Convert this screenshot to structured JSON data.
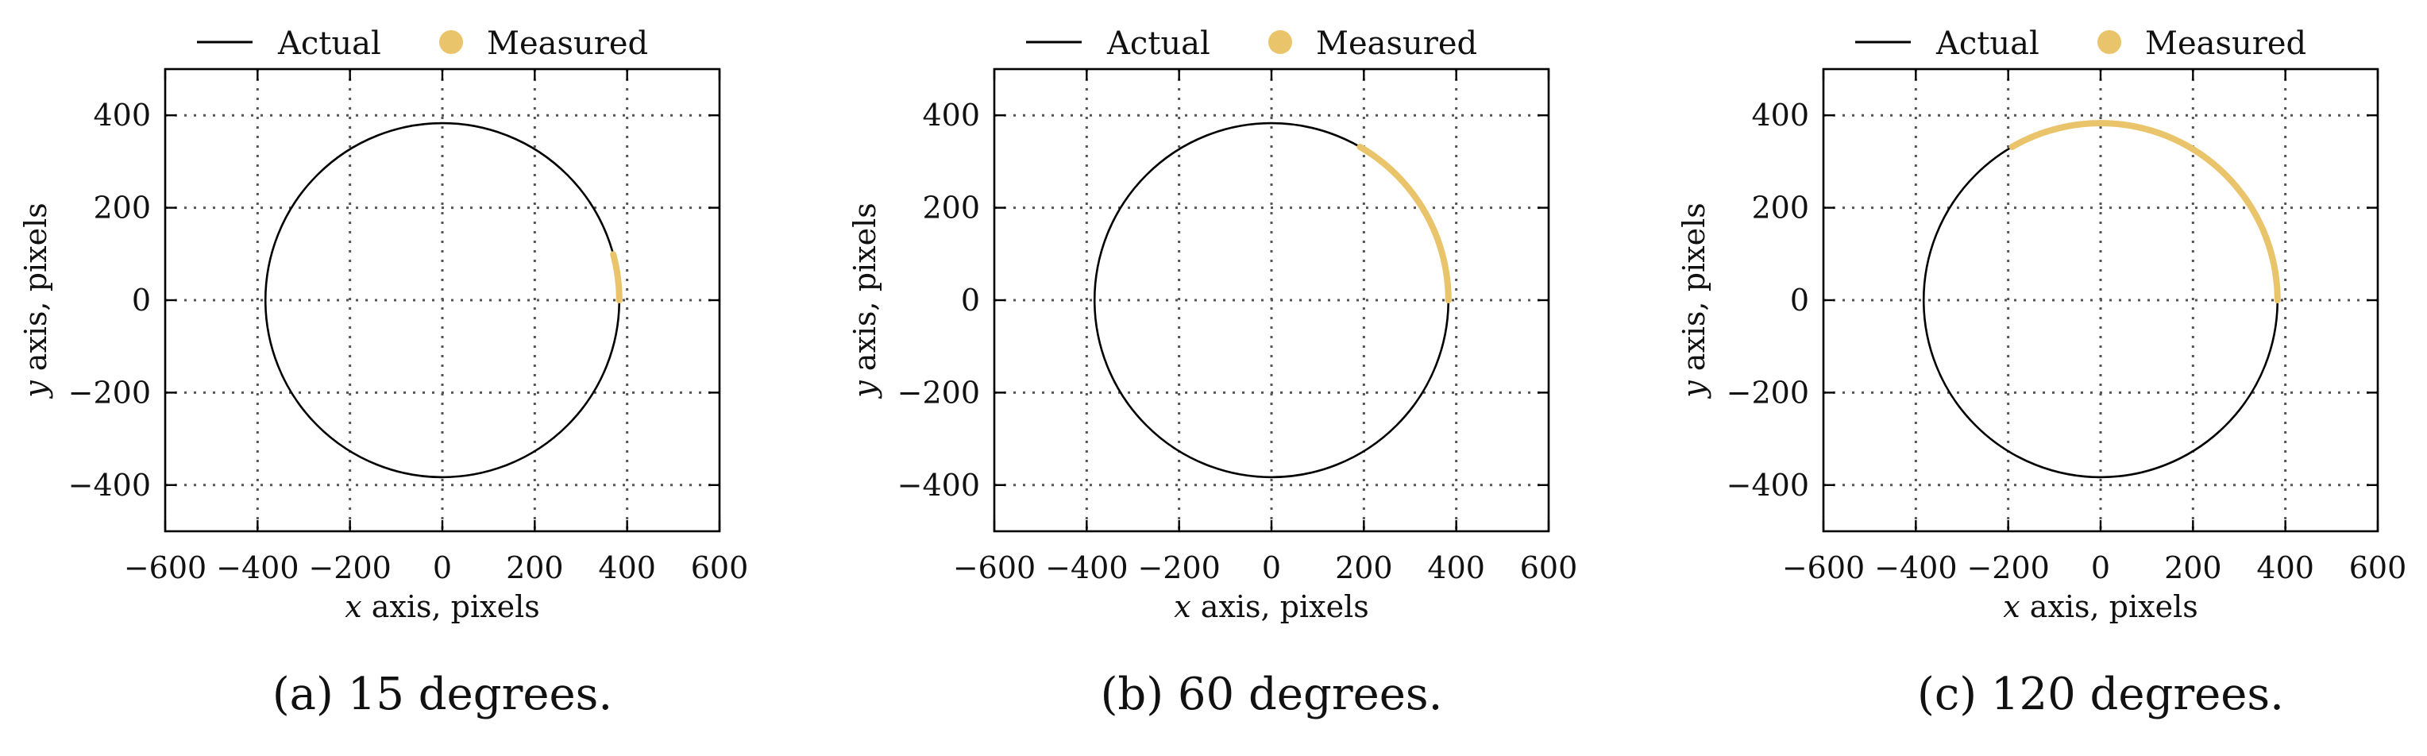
{
  "chart_data": [
    {
      "type": "line",
      "caption": "(a) 15 degrees.",
      "xlabel_var": "x",
      "xlabel_rest": " axis, pixels",
      "ylabel_var": "y",
      "ylabel_rest": " axis, pixels",
      "xlim": [
        -600,
        600
      ],
      "ylim": [
        -500,
        500
      ],
      "xticks": [
        -600,
        -400,
        -200,
        0,
        200,
        400,
        600
      ],
      "yticks": [
        -400,
        -200,
        0,
        200,
        400
      ],
      "xtick_labels": [
        "−600",
        "−400",
        "−200",
        "0",
        "200",
        "400",
        "600"
      ],
      "ytick_labels": [
        "−400",
        "−200",
        "0",
        "200",
        "400"
      ],
      "grid": true,
      "legend": [
        "Actual",
        "Measured"
      ],
      "legend_position": "top",
      "series": [
        {
          "name": "Actual",
          "kind": "circle",
          "center": [
            0,
            0
          ],
          "radius": 383,
          "color": "#000000"
        },
        {
          "name": "Measured",
          "kind": "arc",
          "center": [
            0,
            0
          ],
          "radius": 383,
          "start_deg": 0,
          "end_deg": 15,
          "color": "#E9C46A"
        }
      ]
    },
    {
      "type": "line",
      "caption": "(b) 60 degrees.",
      "xlabel_var": "x",
      "xlabel_rest": " axis, pixels",
      "ylabel_var": "y",
      "ylabel_rest": " axis, pixels",
      "xlim": [
        -600,
        600
      ],
      "ylim": [
        -500,
        500
      ],
      "xticks": [
        -600,
        -400,
        -200,
        0,
        200,
        400,
        600
      ],
      "yticks": [
        -400,
        -200,
        0,
        200,
        400
      ],
      "xtick_labels": [
        "−600",
        "−400",
        "−200",
        "0",
        "200",
        "400",
        "600"
      ],
      "ytick_labels": [
        "−400",
        "−200",
        "0",
        "200",
        "400"
      ],
      "grid": true,
      "legend": [
        "Actual",
        "Measured"
      ],
      "legend_position": "top",
      "series": [
        {
          "name": "Actual",
          "kind": "circle",
          "center": [
            0,
            0
          ],
          "radius": 383,
          "color": "#000000"
        },
        {
          "name": "Measured",
          "kind": "arc",
          "center": [
            0,
            0
          ],
          "radius": 383,
          "start_deg": 0,
          "end_deg": 60,
          "color": "#E9C46A"
        }
      ]
    },
    {
      "type": "line",
      "caption": "(c) 120 degrees.",
      "xlabel_var": "x",
      "xlabel_rest": " axis, pixels",
      "ylabel_var": "y",
      "ylabel_rest": " axis, pixels",
      "xlim": [
        -600,
        600
      ],
      "ylim": [
        -500,
        500
      ],
      "xticks": [
        -600,
        -400,
        -200,
        0,
        200,
        400,
        600
      ],
      "yticks": [
        -400,
        -200,
        0,
        200,
        400
      ],
      "xtick_labels": [
        "−600",
        "−400",
        "−200",
        "0",
        "200",
        "400",
        "600"
      ],
      "ytick_labels": [
        "−400",
        "−200",
        "0",
        "200",
        "400"
      ],
      "grid": true,
      "legend": [
        "Actual",
        "Measured"
      ],
      "legend_position": "top",
      "series": [
        {
          "name": "Actual",
          "kind": "circle",
          "center": [
            0,
            0
          ],
          "radius": 383,
          "color": "#000000"
        },
        {
          "name": "Measured",
          "kind": "arc",
          "center": [
            0,
            0
          ],
          "radius": 383,
          "start_deg": 0,
          "end_deg": 120,
          "color": "#E9C46A"
        }
      ]
    }
  ]
}
